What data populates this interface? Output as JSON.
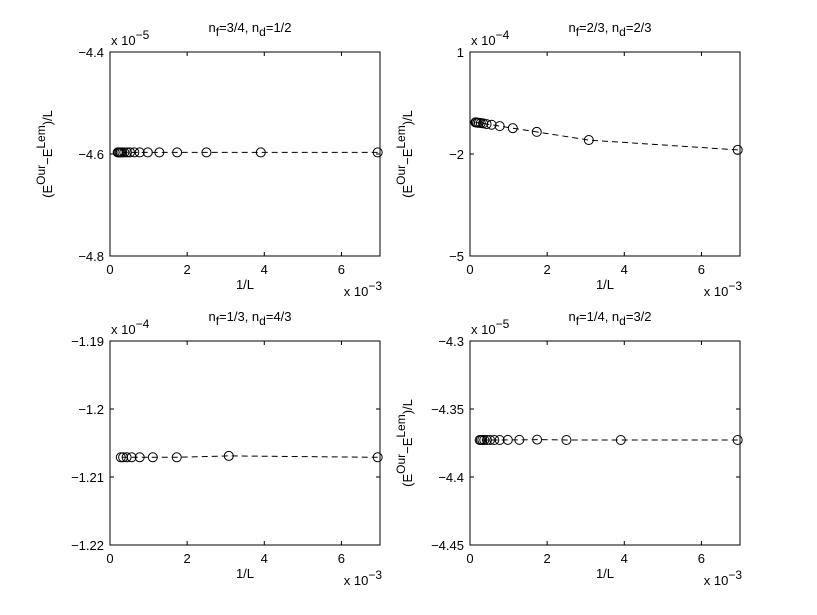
{
  "chart_data": [
    {
      "type": "line",
      "title": {
        "pre": "n",
        "sub1": "f",
        "mid": "=3/4, n",
        "sub2": "d",
        "post": "=1/2"
      },
      "xlabel": "1/L",
      "ylabel": {
        "pre": "(E",
        "sup1": "Our",
        "mid": "−E",
        "sup2": "Lem",
        "post": ")/L"
      },
      "x_multiplier": {
        "base": "x 10",
        "exp": "−3"
      },
      "y_multiplier": {
        "base": "x 10",
        "exp": "−5"
      },
      "xlim": [
        0,
        7
      ],
      "ylim": [
        -4.8,
        -4.4
      ],
      "x_ticks": [
        0,
        2,
        4,
        6
      ],
      "y_ticks": [
        -4.4,
        -4.6,
        -4.8
      ],
      "x_tick_labels": [
        "0",
        "2",
        "4",
        "6"
      ],
      "y_tick_labels": [
        "−4.4",
        "−4.6",
        "−4.8"
      ],
      "grid": false,
      "series": [
        {
          "style": "dashed line with open circle markers",
          "color": "#000000",
          "x": [
            6.94,
            3.91,
            2.5,
            1.74,
            1.28,
            0.98,
            0.77,
            0.63,
            0.52,
            0.44,
            0.37,
            0.32,
            0.28,
            0.25,
            0.22,
            0.2
          ],
          "y": [
            -4.5969,
            -4.5969,
            -4.5969,
            -4.5969,
            -4.5969,
            -4.5969,
            -4.5969,
            -4.5969,
            -4.5969,
            -4.5969,
            -4.5969,
            -4.5969,
            -4.5969,
            -4.5969,
            -4.5969,
            -4.5969
          ]
        }
      ]
    },
    {
      "type": "line",
      "title": {
        "pre": "n",
        "sub1": "f",
        "mid": "=2/3, n",
        "sub2": "d",
        "post": "=2/3"
      },
      "xlabel": "1/L",
      "ylabel": {
        "pre": "(E",
        "sup1": "Our",
        "mid": "−E",
        "sup2": "Lem",
        "post": ")/L"
      },
      "x_multiplier": {
        "base": "x 10",
        "exp": "−3"
      },
      "y_multiplier": {
        "base": "x 10",
        "exp": "−4"
      },
      "xlim": [
        0,
        7
      ],
      "ylim": [
        -5,
        1
      ],
      "x_ticks": [
        0,
        2,
        4,
        6
      ],
      "y_ticks": [
        1,
        -2,
        -5
      ],
      "x_tick_labels": [
        "0",
        "2",
        "4",
        "6"
      ],
      "y_tick_labels": [
        "1",
        "−2",
        "−5"
      ],
      "grid": false,
      "series": [
        {
          "style": "dashed line with open circle markers",
          "color": "#000000",
          "x": [
            6.94,
            3.08,
            1.73,
            1.11,
            0.77,
            0.56,
            0.43,
            0.34,
            0.28,
            0.23,
            0.19,
            0.16,
            0.14
          ],
          "y": [
            -1.88,
            -1.59,
            -1.35,
            -1.24,
            -1.18,
            -1.14,
            -1.12,
            -1.1,
            -1.09,
            -1.08,
            -1.08,
            -1.07,
            -1.07
          ]
        }
      ]
    },
    {
      "type": "line",
      "title": {
        "pre": "n",
        "sub1": "f",
        "mid": "=1/3, n",
        "sub2": "d",
        "post": "=4/3"
      },
      "xlabel": "1/L",
      "ylabel": {
        "pre": "",
        "sup1": "",
        "mid": "",
        "sup2": "",
        "post": ""
      },
      "x_multiplier": {
        "base": "x 10",
        "exp": "−3"
      },
      "y_multiplier": {
        "base": "x 10",
        "exp": "−4"
      },
      "xlim": [
        0,
        7
      ],
      "ylim": [
        -1.22,
        -1.19
      ],
      "x_ticks": [
        0,
        2,
        4,
        6
      ],
      "y_ticks": [
        -1.19,
        -1.2,
        -1.21,
        -1.22
      ],
      "x_tick_labels": [
        "0",
        "2",
        "4",
        "6"
      ],
      "y_tick_labels": [
        "−1.19",
        "−1.2",
        "−1.21",
        "−1.22"
      ],
      "grid": false,
      "series": [
        {
          "style": "dashed line with open circle markers",
          "color": "#000000",
          "x": [
            6.94,
            3.08,
            1.73,
            1.11,
            0.77,
            0.56,
            0.43,
            0.34,
            0.28
          ],
          "y": [
            -1.2071,
            -1.2069,
            -1.2071,
            -1.2071,
            -1.2071,
            -1.2071,
            -1.2071,
            -1.2071,
            -1.2071
          ]
        }
      ]
    },
    {
      "type": "line",
      "title": {
        "pre": "n",
        "sub1": "f",
        "mid": "=1/4, n",
        "sub2": "d",
        "post": "=3/2"
      },
      "xlabel": "1/L",
      "ylabel": {
        "pre": "(E",
        "sup1": "Our",
        "mid": "−E",
        "sup2": "Lem",
        "post": ")/L"
      },
      "x_multiplier": {
        "base": "x 10",
        "exp": "−3"
      },
      "y_multiplier": {
        "base": "x 10",
        "exp": "−5"
      },
      "xlim": [
        0,
        7
      ],
      "ylim": [
        -4.45,
        -4.3
      ],
      "x_ticks": [
        0,
        2,
        4,
        6
      ],
      "y_ticks": [
        -4.3,
        -4.35,
        -4.4,
        -4.45
      ],
      "x_tick_labels": [
        "0",
        "2",
        "4",
        "6"
      ],
      "y_tick_labels": [
        "−4.3",
        "−4.35",
        "−4.4",
        "−4.45"
      ],
      "grid": false,
      "series": [
        {
          "style": "dashed line with open circle markers",
          "color": "#000000",
          "x": [
            6.94,
            3.91,
            2.5,
            1.74,
            1.28,
            0.98,
            0.77,
            0.63,
            0.52,
            0.44,
            0.37,
            0.32,
            0.28,
            0.25
          ],
          "y": [
            -4.3728,
            -4.3728,
            -4.3728,
            -4.3725,
            -4.3727,
            -4.3727,
            -4.3728,
            -4.3728,
            -4.3728,
            -4.3728,
            -4.3728,
            -4.3728,
            -4.3728,
            -4.3728
          ]
        }
      ]
    }
  ]
}
